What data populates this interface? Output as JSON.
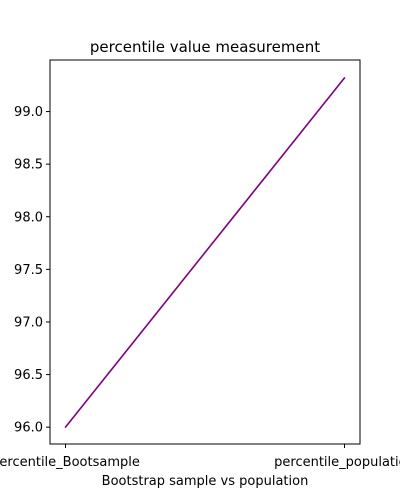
{
  "chart_data": {
    "type": "line",
    "title": "percentile value measurement",
    "xlabel": "Bootstrap sample vs population",
    "ylabel": "",
    "categories": [
      "percentile_Bootsample",
      "percentile_population"
    ],
    "series": [
      {
        "values": [
          96.0,
          99.32
        ],
        "color": "#800080"
      }
    ],
    "ylim": [
      95.84,
      99.49
    ],
    "yticks": [
      96.0,
      96.5,
      97.0,
      97.5,
      98.0,
      98.5,
      99.0
    ],
    "ytick_labels": [
      "96.0",
      "96.5",
      "97.0",
      "97.5",
      "98.0",
      "98.5",
      "99.0"
    ],
    "grid": false,
    "legend": "none"
  }
}
